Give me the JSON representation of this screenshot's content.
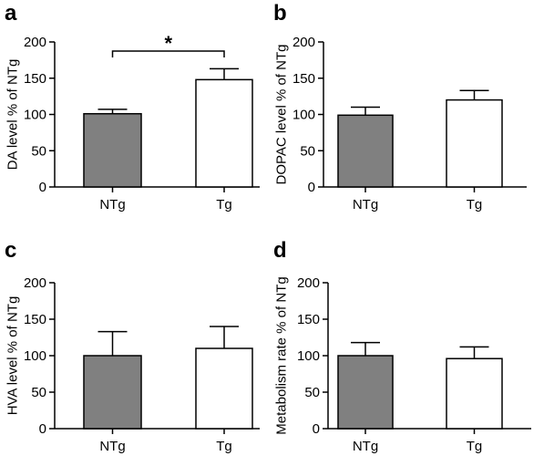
{
  "chart_data": [
    {
      "type": "bar",
      "panel": "a",
      "ylabel": "DA level  % of NTg",
      "categories": [
        "NTg",
        "Tg"
      ],
      "values": [
        101,
        148
      ],
      "errors": [
        6,
        15
      ],
      "colors": [
        "#808080",
        "#ffffff"
      ],
      "ylim": [
        0,
        200
      ],
      "yticks": [
        0,
        50,
        100,
        150,
        200
      ],
      "significance": "*"
    },
    {
      "type": "bar",
      "panel": "b",
      "ylabel": "DOPAC level % of NTg",
      "categories": [
        "NTg",
        "Tg"
      ],
      "values": [
        99,
        120
      ],
      "errors": [
        11,
        13
      ],
      "colors": [
        "#808080",
        "#ffffff"
      ],
      "ylim": [
        0,
        200
      ],
      "yticks": [
        0,
        50,
        100,
        150,
        200
      ]
    },
    {
      "type": "bar",
      "panel": "c",
      "ylabel": "HVA level % of NTg",
      "categories": [
        "NTg",
        "Tg"
      ],
      "values": [
        100,
        110
      ],
      "errors": [
        33,
        30
      ],
      "colors": [
        "#808080",
        "#ffffff"
      ],
      "ylim": [
        0,
        200
      ],
      "yticks": [
        0,
        50,
        100,
        150,
        200
      ]
    },
    {
      "type": "bar",
      "panel": "d",
      "ylabel": "Metabolism rate % of NTg",
      "categories": [
        "NTg",
        "Tg"
      ],
      "values": [
        100,
        96
      ],
      "errors": [
        18,
        16
      ],
      "colors": [
        "#808080",
        "#ffffff"
      ],
      "ylim": [
        0,
        200
      ],
      "yticks": [
        0,
        50,
        100,
        150,
        200
      ]
    }
  ]
}
